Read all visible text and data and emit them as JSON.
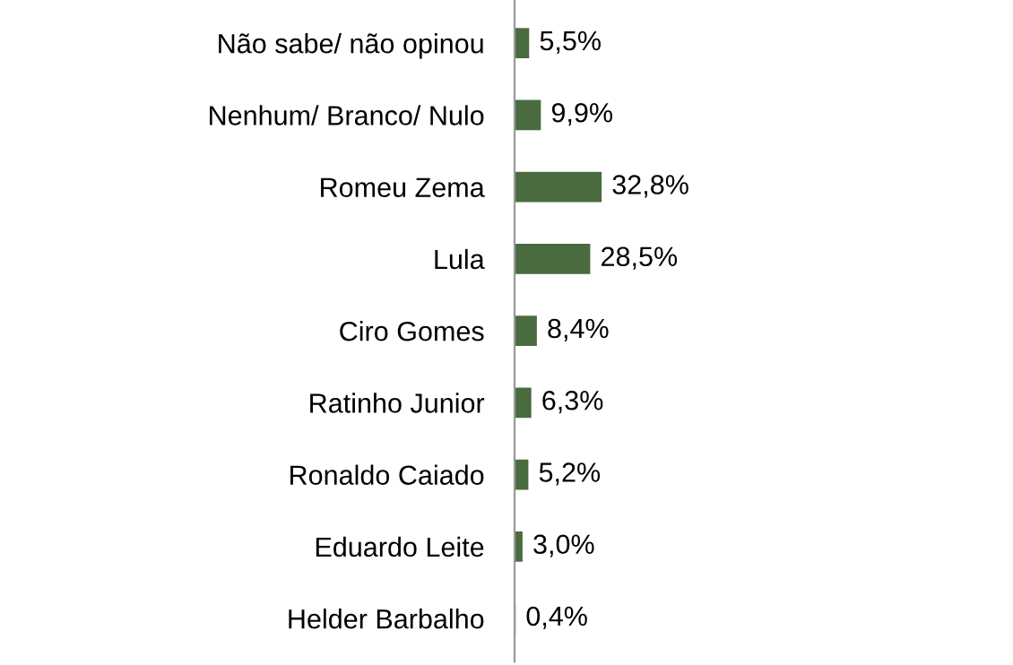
{
  "chart_data": {
    "type": "bar",
    "orientation": "horizontal",
    "categories": [
      "Não sabe/ não opinou",
      "Nenhum/ Branco/ Nulo",
      "Romeu Zema",
      "Lula",
      "Ciro Gomes",
      "Ratinho Junior",
      "Ronaldo Caiado",
      "Eduardo Leite",
      "Helder Barbalho"
    ],
    "values": [
      5.5,
      9.9,
      32.8,
      28.5,
      8.4,
      6.3,
      5.2,
      3.0,
      0.4
    ],
    "value_labels": [
      "5,5%",
      "9,9%",
      "32,8%",
      "28,5%",
      "8,4%",
      "6,3%",
      "5,2%",
      "3,0%",
      "0,4%"
    ],
    "color": "#4a6b3f",
    "grid": false,
    "legend": false
  }
}
